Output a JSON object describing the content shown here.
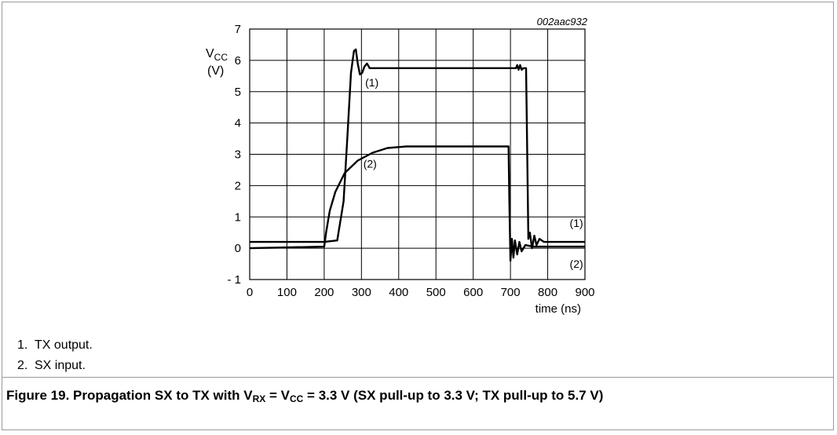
{
  "chart_data": {
    "type": "line",
    "figure_id": "002aac932",
    "ylabel_main": "V",
    "ylabel_sub": "CC",
    "ylabel_unit": "(V)",
    "xlabel": "time (ns)",
    "xlim": [
      0,
      900
    ],
    "ylim": [
      -1,
      7
    ],
    "xticks": [
      0,
      100,
      200,
      300,
      400,
      500,
      600,
      700,
      800,
      900
    ],
    "yticks": [
      7,
      6,
      5,
      4,
      3,
      2,
      1,
      0,
      -1
    ],
    "ytick_labels": [
      "7",
      "6",
      "5",
      "4",
      "3",
      "2",
      "1",
      "0",
      "- 1"
    ],
    "grid": true,
    "series": [
      {
        "name": "(1)",
        "points": [
          [
            0,
            0.2
          ],
          [
            200,
            0.2
          ],
          [
            235,
            0.25
          ],
          [
            252,
            1.5
          ],
          [
            262,
            3.5
          ],
          [
            272,
            5.6
          ],
          [
            280,
            6.3
          ],
          [
            285,
            6.35
          ],
          [
            290,
            5.9
          ],
          [
            296,
            5.55
          ],
          [
            302,
            5.6
          ],
          [
            308,
            5.8
          ],
          [
            315,
            5.9
          ],
          [
            322,
            5.75
          ],
          [
            340,
            5.75
          ],
          [
            690,
            5.75
          ],
          [
            715,
            5.75
          ],
          [
            718,
            5.85
          ],
          [
            722,
            5.7
          ],
          [
            726,
            5.85
          ],
          [
            730,
            5.7
          ],
          [
            735,
            5.75
          ],
          [
            742,
            5.75
          ],
          [
            745,
            3.0
          ],
          [
            748,
            0.3
          ],
          [
            752,
            0.5
          ],
          [
            758,
            0.0
          ],
          [
            764,
            0.4
          ],
          [
            770,
            0.1
          ],
          [
            778,
            0.3
          ],
          [
            790,
            0.2
          ],
          [
            900,
            0.2
          ]
        ]
      },
      {
        "name": "(2)",
        "points": [
          [
            0,
            0.0
          ],
          [
            200,
            0.05
          ],
          [
            205,
            0.5
          ],
          [
            215,
            1.2
          ],
          [
            230,
            1.8
          ],
          [
            255,
            2.4
          ],
          [
            290,
            2.8
          ],
          [
            330,
            3.05
          ],
          [
            370,
            3.2
          ],
          [
            420,
            3.25
          ],
          [
            695,
            3.25
          ],
          [
            697,
            1.5
          ],
          [
            700,
            -0.4
          ],
          [
            704,
            0.3
          ],
          [
            708,
            -0.3
          ],
          [
            712,
            0.25
          ],
          [
            718,
            -0.2
          ],
          [
            724,
            0.2
          ],
          [
            730,
            -0.1
          ],
          [
            740,
            0.1
          ],
          [
            760,
            0.05
          ],
          [
            900,
            0.05
          ]
        ]
      }
    ],
    "labels": [
      {
        "text": "(1)",
        "x": 310,
        "y": 5.3
      },
      {
        "text": "(2)",
        "x": 305,
        "y": 2.7
      },
      {
        "text": "(1)",
        "x": 800,
        "y": 0.8
      },
      {
        "text": "(2)",
        "x": 800,
        "y": -0.5
      }
    ]
  },
  "notes": [
    {
      "num": "1.",
      "text": "TX output."
    },
    {
      "num": "2.",
      "text": "SX input."
    }
  ],
  "caption": {
    "p1": "Figure 19.  Propagation SX to TX with V",
    "s1": "RX",
    "p2": " = V",
    "s2": "CC",
    "p3": " = 3.3 V (SX pull-up to 3.3 V; TX pull-up to 5.7 V)"
  }
}
